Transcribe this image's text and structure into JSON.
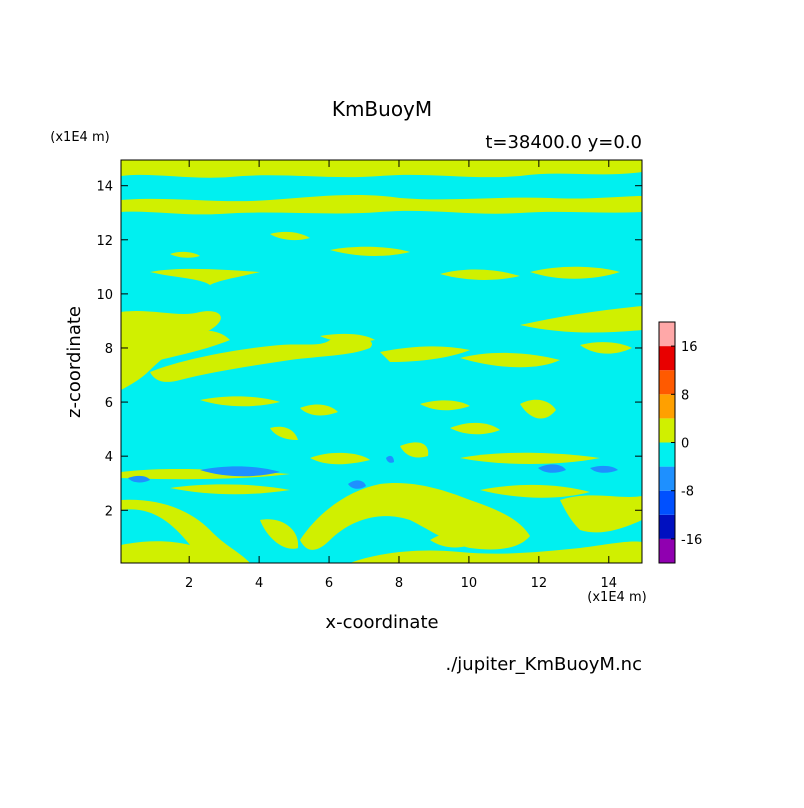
{
  "chart_data": {
    "type": "contour",
    "title": "KmBuoyM",
    "subtitle": "t=38400.0 y=0.0",
    "x_label": "x-coordinate",
    "y_label": "z-coordinate",
    "x_unit": "(x1E4 m)",
    "y_unit": "(x1E4 m)",
    "footer": "./jupiter_KmBuoyM.nc",
    "xlim": [
      0.05,
      14.95
    ],
    "ylim": [
      0.05,
      14.95
    ],
    "xticks": [
      2,
      4,
      6,
      8,
      10,
      12,
      14
    ],
    "yticks": [
      2,
      4,
      6,
      8,
      10,
      12,
      14
    ],
    "colorbar": {
      "levels": [
        -20,
        -16,
        -12,
        -8,
        -4,
        0,
        4,
        8,
        12,
        16,
        20
      ],
      "colors": [
        "#9000b0",
        "#0010c0",
        "#0050ff",
        "#1e90ff",
        "#00f0f0",
        "#d0f000",
        "#ffa000",
        "#ff5a00",
        "#e80000",
        "#ffa8a8"
      ],
      "ticks": [
        -16,
        -8,
        0,
        8,
        16
      ]
    }
  }
}
